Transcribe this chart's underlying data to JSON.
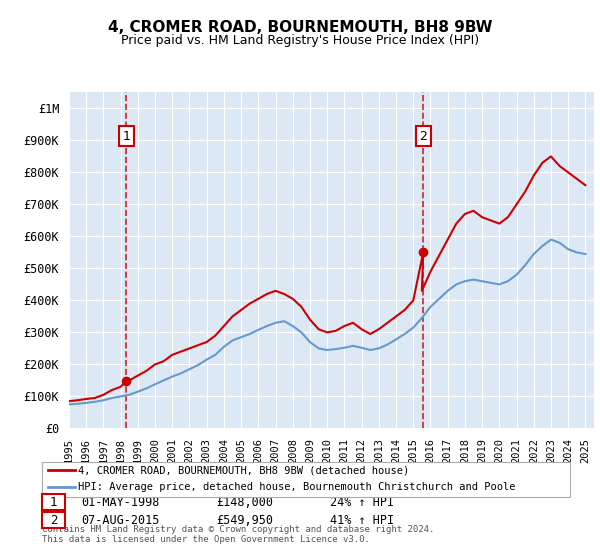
{
  "title": "4, CROMER ROAD, BOURNEMOUTH, BH8 9BW",
  "subtitle": "Price paid vs. HM Land Registry's House Price Index (HPI)",
  "background_color": "#dde8f5",
  "plot_bg_color": "#dde8f5",
  "ylim": [
    0,
    1050000
  ],
  "yticks": [
    0,
    100000,
    200000,
    300000,
    400000,
    500000,
    600000,
    700000,
    800000,
    900000,
    1000000
  ],
  "ytick_labels": [
    "£0",
    "£100K",
    "£200K",
    "£300K",
    "£400K",
    "£500K",
    "£600K",
    "£700K",
    "£800K",
    "£900K",
    "£1M"
  ],
  "xlim_start": 1995.0,
  "xlim_end": 2025.5,
  "xtick_years": [
    1995,
    1996,
    1997,
    1998,
    1999,
    2000,
    2001,
    2002,
    2003,
    2004,
    2005,
    2006,
    2007,
    2008,
    2009,
    2010,
    2011,
    2012,
    2013,
    2014,
    2015,
    2016,
    2017,
    2018,
    2019,
    2020,
    2021,
    2022,
    2023,
    2024,
    2025
  ],
  "red_line_color": "#cc0000",
  "blue_line_color": "#6699cc",
  "grid_color": "#ffffff",
  "annotation_box_color": "#cc0000",
  "dashed_line_color": "#cc0000",
  "legend_label_red": "4, CROMER ROAD, BOURNEMOUTH, BH8 9BW (detached house)",
  "legend_label_blue": "HPI: Average price, detached house, Bournemouth Christchurch and Poole",
  "transaction1_date": "01-MAY-1998",
  "transaction1_price": "£148,000",
  "transaction1_hpi": "24% ↑ HPI",
  "transaction1_year": 1998.33,
  "transaction1_value": 148000,
  "transaction2_date": "07-AUG-2015",
  "transaction2_price": "£549,950",
  "transaction2_hpi": "41% ↑ HPI",
  "transaction2_year": 2015.58,
  "transaction2_value": 549950,
  "footer": "Contains HM Land Registry data © Crown copyright and database right 2024.\nThis data is licensed under the Open Government Licence v3.0.",
  "red_x": [
    1995.0,
    1995.5,
    1996.0,
    1996.5,
    1997.0,
    1997.5,
    1998.0,
    1998.33,
    1998.5,
    1999.0,
    1999.5,
    2000.0,
    2000.5,
    2001.0,
    2001.5,
    2002.0,
    2002.5,
    2003.0,
    2003.5,
    2004.0,
    2004.5,
    2005.0,
    2005.5,
    2006.0,
    2006.5,
    2007.0,
    2007.5,
    2008.0,
    2008.5,
    2009.0,
    2009.5,
    2010.0,
    2010.5,
    2011.0,
    2011.5,
    2012.0,
    2012.5,
    2013.0,
    2013.5,
    2014.0,
    2014.5,
    2015.0,
    2015.58,
    2015.5,
    2016.0,
    2016.5,
    2017.0,
    2017.5,
    2018.0,
    2018.5,
    2019.0,
    2019.5,
    2020.0,
    2020.5,
    2021.0,
    2021.5,
    2022.0,
    2022.5,
    2023.0,
    2023.5,
    2024.0,
    2024.5,
    2025.0
  ],
  "red_y": [
    85000,
    88000,
    92000,
    95000,
    105000,
    120000,
    130000,
    148000,
    150000,
    165000,
    180000,
    200000,
    210000,
    230000,
    240000,
    250000,
    260000,
    270000,
    290000,
    320000,
    350000,
    370000,
    390000,
    405000,
    420000,
    430000,
    420000,
    405000,
    380000,
    340000,
    310000,
    300000,
    305000,
    320000,
    330000,
    310000,
    295000,
    310000,
    330000,
    350000,
    370000,
    400000,
    549950,
    430000,
    490000,
    540000,
    590000,
    640000,
    670000,
    680000,
    660000,
    650000,
    640000,
    660000,
    700000,
    740000,
    790000,
    830000,
    850000,
    820000,
    800000,
    780000,
    760000
  ],
  "blue_x": [
    1995.0,
    1995.5,
    1996.0,
    1996.5,
    1997.0,
    1997.5,
    1998.0,
    1998.5,
    1999.0,
    1999.5,
    2000.0,
    2000.5,
    2001.0,
    2001.5,
    2002.0,
    2002.5,
    2003.0,
    2003.5,
    2004.0,
    2004.5,
    2005.0,
    2005.5,
    2006.0,
    2006.5,
    2007.0,
    2007.5,
    2008.0,
    2008.5,
    2009.0,
    2009.5,
    2010.0,
    2010.5,
    2011.0,
    2011.5,
    2012.0,
    2012.5,
    2013.0,
    2013.5,
    2014.0,
    2014.5,
    2015.0,
    2015.5,
    2016.0,
    2016.5,
    2017.0,
    2017.5,
    2018.0,
    2018.5,
    2019.0,
    2019.5,
    2020.0,
    2020.5,
    2021.0,
    2021.5,
    2022.0,
    2022.5,
    2023.0,
    2023.5,
    2024.0,
    2024.5,
    2025.0
  ],
  "blue_y": [
    75000,
    77000,
    80000,
    83000,
    88000,
    95000,
    100000,
    105000,
    115000,
    125000,
    138000,
    150000,
    162000,
    172000,
    185000,
    198000,
    215000,
    230000,
    255000,
    275000,
    285000,
    295000,
    308000,
    320000,
    330000,
    335000,
    320000,
    300000,
    270000,
    250000,
    245000,
    248000,
    252000,
    258000,
    252000,
    245000,
    250000,
    262000,
    278000,
    295000,
    315000,
    345000,
    380000,
    405000,
    430000,
    450000,
    460000,
    465000,
    460000,
    455000,
    450000,
    460000,
    480000,
    510000,
    545000,
    570000,
    590000,
    580000,
    560000,
    550000,
    545000
  ]
}
